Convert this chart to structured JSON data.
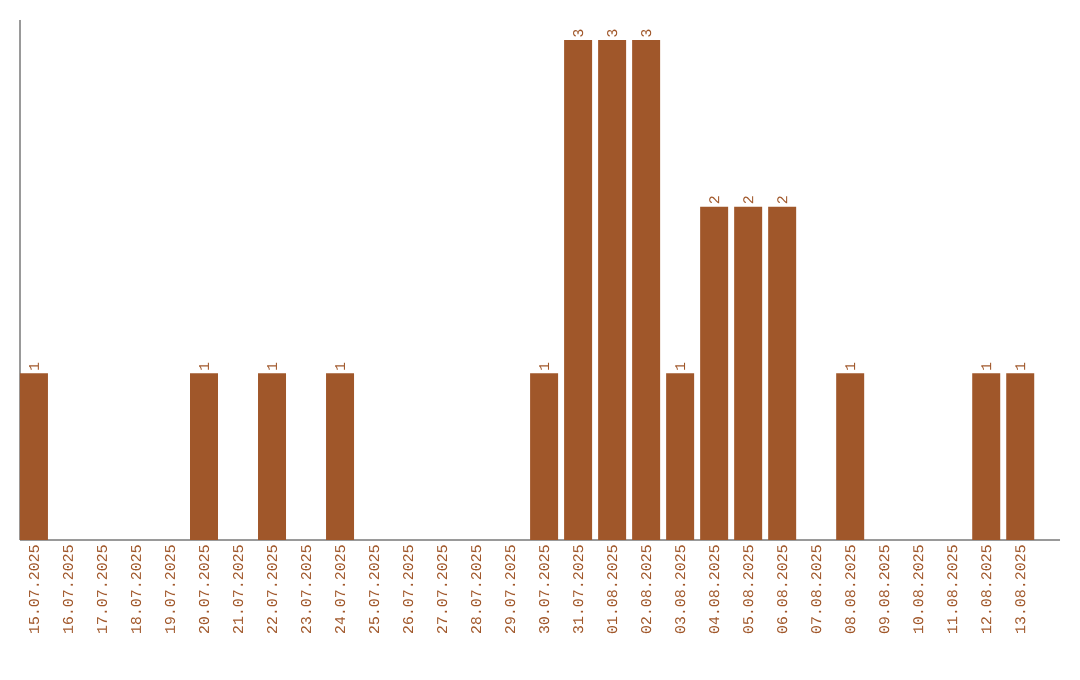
{
  "chart_data": {
    "type": "bar",
    "color": "#a0572a",
    "categories": [
      "15.07.2025",
      "16.07.2025",
      "17.07.2025",
      "18.07.2025",
      "19.07.2025",
      "20.07.2025",
      "21.07.2025",
      "22.07.2025",
      "23.07.2025",
      "24.07.2025",
      "25.07.2025",
      "26.07.2025",
      "27.07.2025",
      "28.07.2025",
      "29.07.2025",
      "30.07.2025",
      "31.07.2025",
      "01.08.2025",
      "02.08.2025",
      "03.08.2025",
      "04.08.2025",
      "05.08.2025",
      "06.08.2025",
      "07.08.2025",
      "08.08.2025",
      "09.08.2025",
      "10.08.2025",
      "11.08.2025",
      "12.08.2025",
      "13.08.2025"
    ],
    "values": [
      1,
      0,
      0,
      0,
      0,
      1,
      0,
      1,
      0,
      1,
      0,
      0,
      0,
      0,
      0,
      1,
      3,
      3,
      3,
      1,
      2,
      2,
      2,
      0,
      1,
      0,
      0,
      0,
      1,
      1
    ],
    "value_labels": [
      "1",
      null,
      null,
      null,
      null,
      "1",
      null,
      "1",
      null,
      "1",
      null,
      null,
      null,
      null,
      null,
      "1",
      "3",
      "3",
      "3",
      "1",
      "2",
      "2",
      "2",
      null,
      "1",
      null,
      null,
      null,
      "1",
      "1"
    ]
  }
}
